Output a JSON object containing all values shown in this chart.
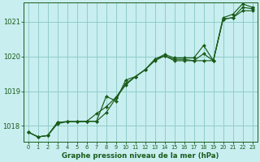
{
  "title": "Graphe pression niveau de la mer (hPa)",
  "bg_color": "#c8eef0",
  "grid_color": "#90ccc8",
  "line_color": "#1a5c1a",
  "marker_color": "#1a5c1a",
  "xlim": [
    -0.5,
    23.5
  ],
  "ylim": [
    1017.55,
    1021.55
  ],
  "yticks": [
    1018,
    1019,
    1020,
    1021
  ],
  "xticks": [
    0,
    1,
    2,
    3,
    4,
    5,
    6,
    7,
    8,
    9,
    10,
    11,
    12,
    13,
    14,
    15,
    16,
    17,
    18,
    19,
    20,
    21,
    22,
    23
  ],
  "series": {
    "line1": [
      1017.82,
      1017.68,
      1017.72,
      1018.1,
      1018.12,
      1018.12,
      1018.13,
      1018.13,
      1018.38,
      1018.8,
      1019.18,
      1019.42,
      1019.62,
      1019.92,
      1020.06,
      1019.96,
      1019.96,
      1019.96,
      1020.32,
      1019.88,
      1021.12,
      1021.22,
      1021.52,
      1021.42
    ],
    "line2": [
      1017.82,
      1017.68,
      1017.72,
      1018.06,
      1018.12,
      1018.12,
      1018.13,
      1018.13,
      1018.85,
      1018.72,
      1019.32,
      1019.42,
      1019.62,
      1019.88,
      1020.02,
      1019.88,
      1019.88,
      1019.88,
      1020.08,
      1019.88,
      1021.08,
      1021.12,
      1021.42,
      1021.38
    ],
    "line3": [
      1017.82,
      1017.68,
      1017.72,
      1018.1,
      1018.12,
      1018.12,
      1018.13,
      1018.35,
      1018.55,
      1018.82,
      1019.22,
      1019.42,
      1019.62,
      1019.92,
      1020.02,
      1019.92,
      1019.92,
      1019.88,
      1019.88,
      1019.88,
      1021.08,
      1021.12,
      1021.32,
      1021.32
    ]
  }
}
